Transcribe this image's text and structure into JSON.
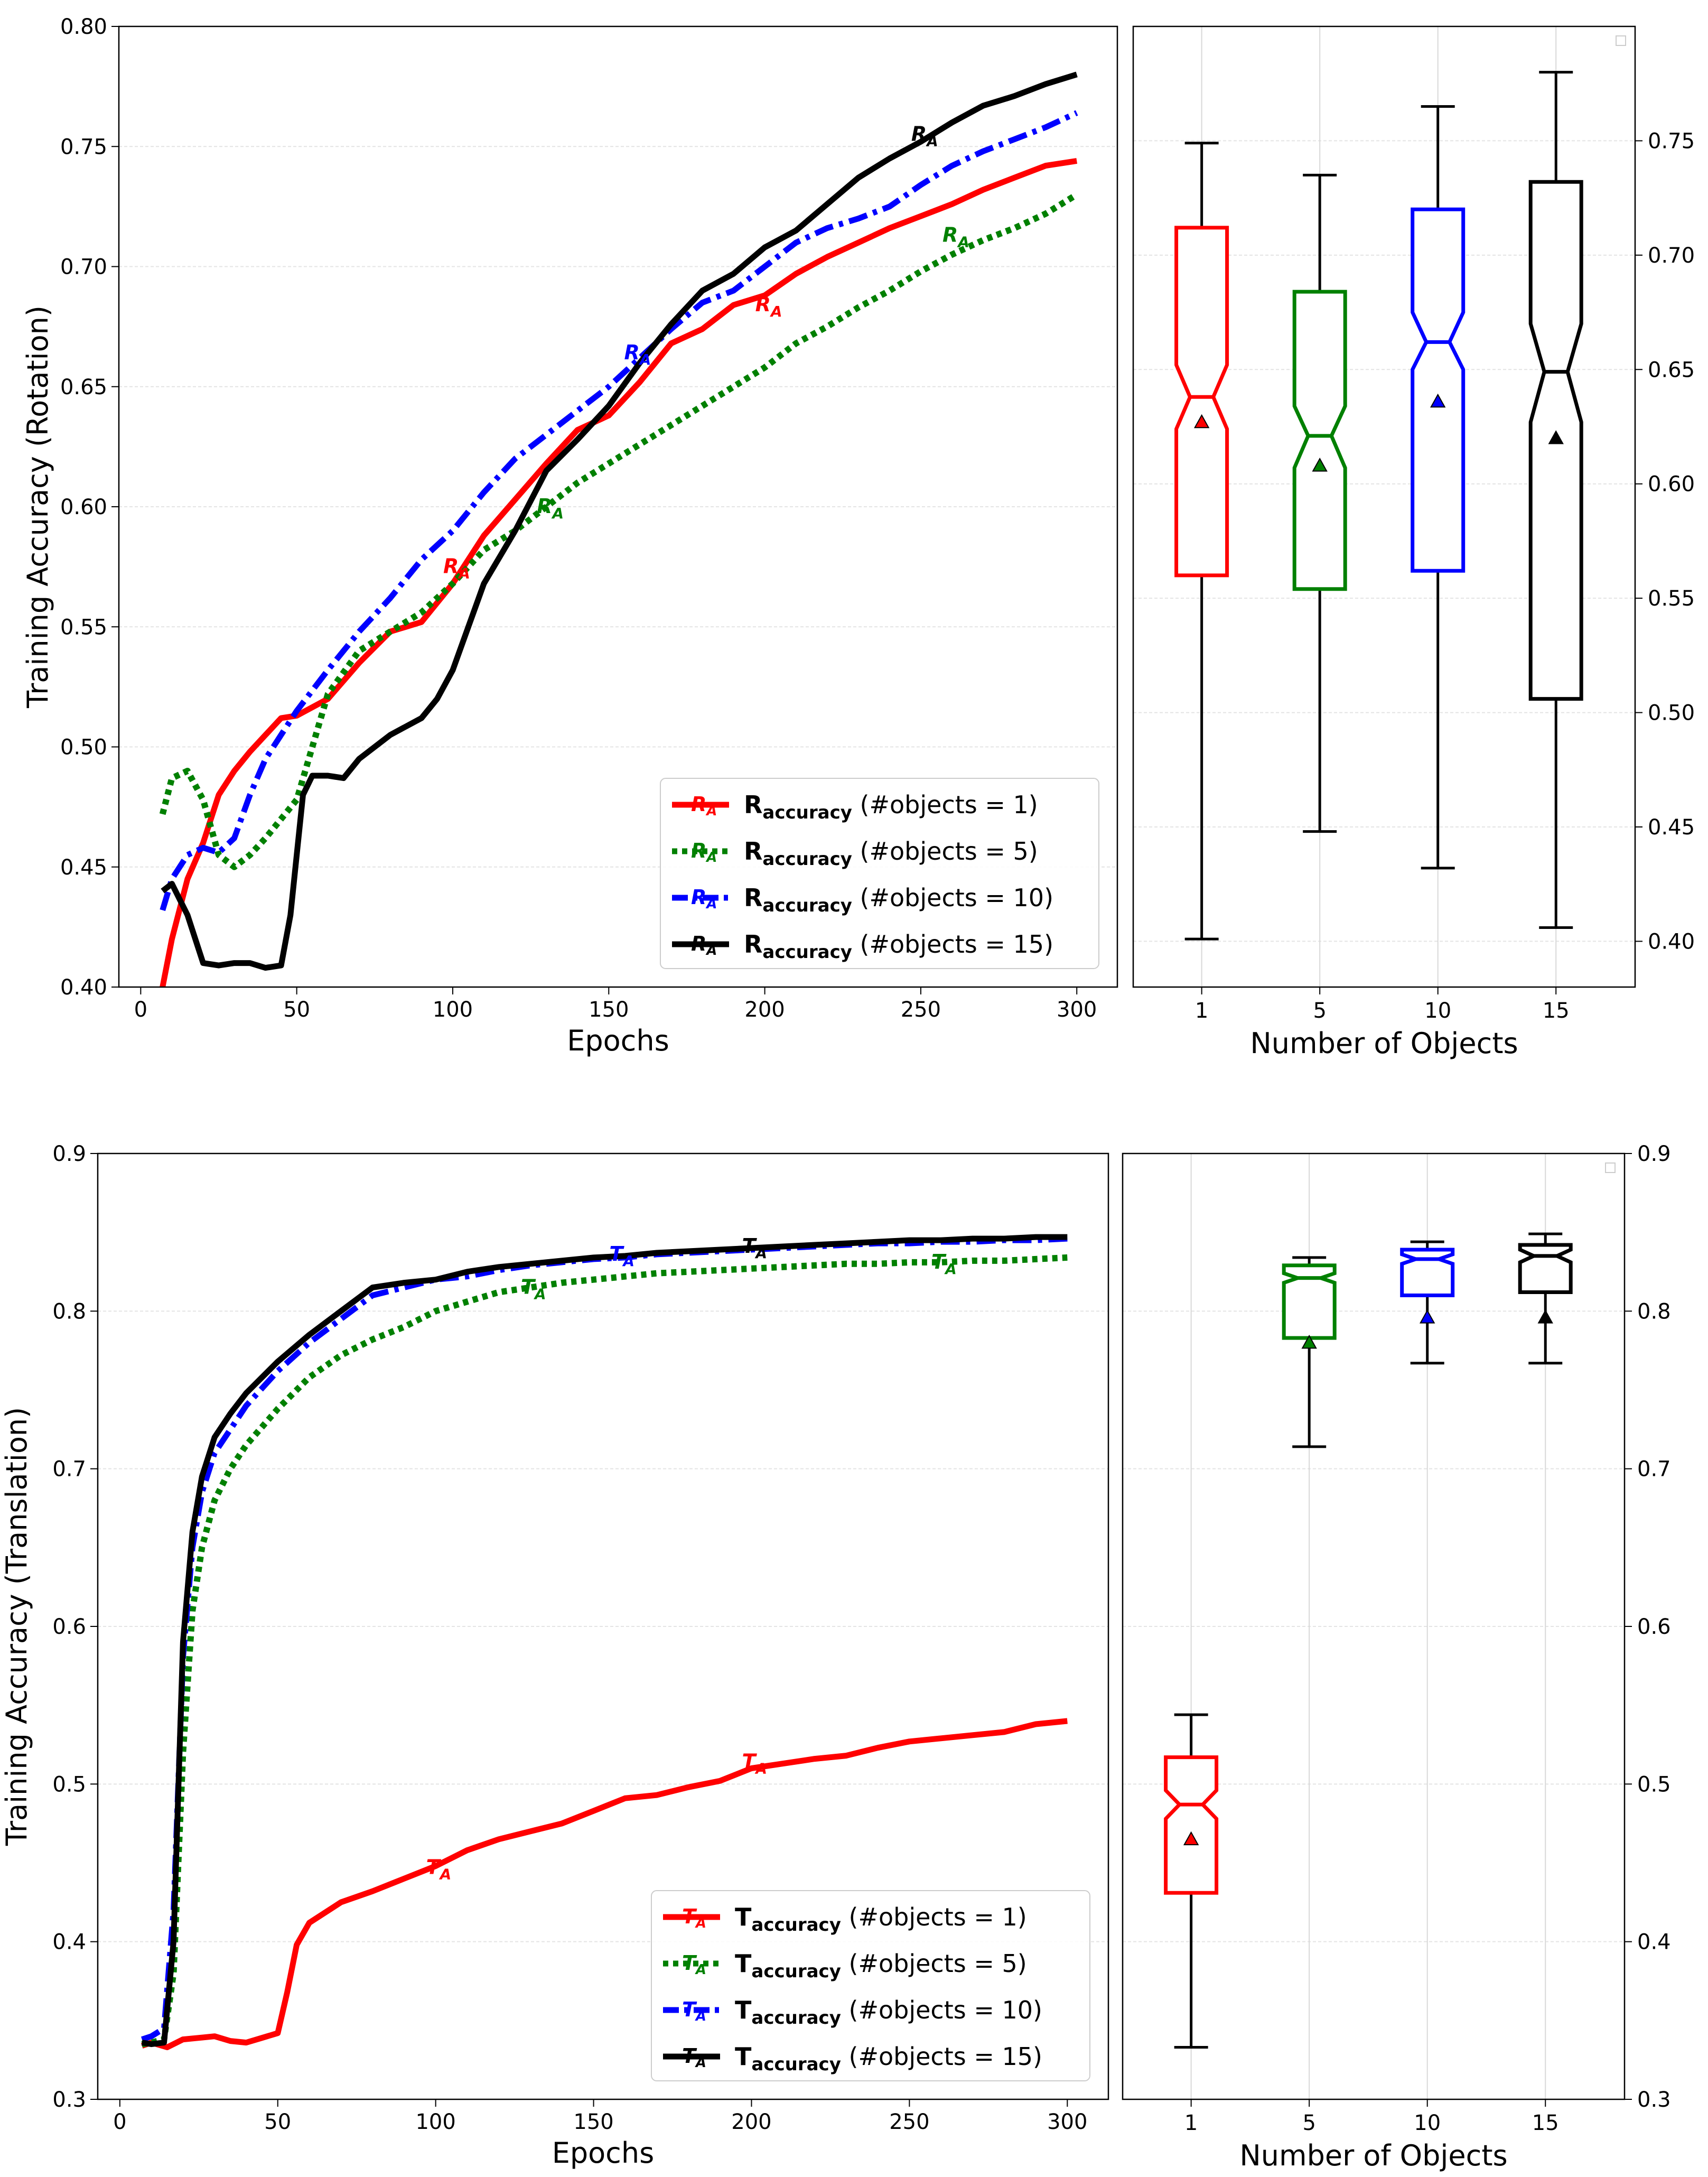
{
  "chart_data": [
    {
      "id": "rot_line",
      "type": "line",
      "ylabel": "Training Accuracy (Rotation)",
      "xlabel": "Epochs",
      "xlim": [
        -7,
        313
      ],
      "ylim": [
        0.4,
        0.8
      ],
      "xticks": [
        0,
        50,
        100,
        150,
        200,
        250,
        300
      ],
      "yticks": [
        "0.40",
        "0.45",
        "0.50",
        "0.55",
        "0.60",
        "0.65",
        "0.70",
        "0.75",
        "0.80"
      ],
      "grid": "horizontal",
      "legend_position": "bottom-right",
      "series": [
        {
          "name": "R_accuracy (#objects = 1)",
          "legend_main": "R",
          "legend_sub": "accuracy",
          "legend_rest": " (#objects = 1)",
          "marker": "R_A",
          "color": "#ff0000",
          "style": "solid",
          "x": [
            7,
            10,
            15,
            20,
            25,
            30,
            35,
            40,
            45,
            50,
            60,
            70,
            80,
            90,
            100,
            110,
            120,
            130,
            140,
            150,
            160,
            170,
            180,
            190,
            200,
            210,
            220,
            230,
            240,
            250,
            260,
            270,
            280,
            290,
            300
          ],
          "y": [
            0.4,
            0.42,
            0.445,
            0.46,
            0.48,
            0.49,
            0.498,
            0.505,
            0.512,
            0.513,
            0.52,
            0.535,
            0.548,
            0.552,
            0.568,
            0.588,
            0.603,
            0.618,
            0.632,
            0.638,
            0.652,
            0.668,
            0.674,
            0.684,
            0.688,
            0.697,
            0.704,
            0.71,
            0.716,
            0.721,
            0.726,
            0.732,
            0.737,
            0.742,
            0.744
          ]
        },
        {
          "name": "R_accuracy (#objects = 5)",
          "legend_main": "R",
          "legend_sub": "accuracy",
          "legend_rest": " (#objects = 5)",
          "marker": "R_A",
          "color": "#008000",
          "style": "dotted",
          "x": [
            7,
            10,
            15,
            20,
            25,
            30,
            35,
            40,
            45,
            50,
            55,
            60,
            70,
            80,
            90,
            100,
            110,
            120,
            130,
            140,
            150,
            160,
            170,
            180,
            190,
            200,
            210,
            220,
            230,
            240,
            250,
            260,
            270,
            280,
            290,
            300
          ],
          "y": [
            0.472,
            0.487,
            0.49,
            0.478,
            0.455,
            0.45,
            0.455,
            0.462,
            0.47,
            0.478,
            0.5,
            0.522,
            0.54,
            0.548,
            0.556,
            0.568,
            0.582,
            0.59,
            0.6,
            0.61,
            0.618,
            0.626,
            0.634,
            0.642,
            0.65,
            0.658,
            0.668,
            0.675,
            0.683,
            0.69,
            0.698,
            0.705,
            0.711,
            0.716,
            0.722,
            0.73
          ]
        },
        {
          "name": "R_accuracy (#objects = 10)",
          "legend_main": "R",
          "legend_sub": "accuracy",
          "legend_rest": " (#objects = 10)",
          "marker": "R_A",
          "color": "#0000ff",
          "style": "dashdot",
          "x": [
            7,
            10,
            15,
            20,
            25,
            30,
            35,
            40,
            45,
            50,
            60,
            70,
            80,
            90,
            100,
            110,
            120,
            130,
            140,
            150,
            160,
            170,
            180,
            190,
            200,
            210,
            220,
            230,
            240,
            250,
            260,
            270,
            280,
            290,
            300
          ],
          "y": [
            0.432,
            0.445,
            0.455,
            0.458,
            0.456,
            0.462,
            0.48,
            0.495,
            0.505,
            0.515,
            0.532,
            0.548,
            0.562,
            0.578,
            0.59,
            0.606,
            0.62,
            0.63,
            0.64,
            0.65,
            0.662,
            0.674,
            0.685,
            0.69,
            0.7,
            0.71,
            0.716,
            0.72,
            0.725,
            0.734,
            0.742,
            0.748,
            0.753,
            0.758,
            0.764
          ]
        },
        {
          "name": "R_accuracy (#objects = 15)",
          "legend_main": "R",
          "legend_sub": "accuracy",
          "legend_rest": " (#objects = 15)",
          "marker": "R_A",
          "color": "#000000",
          "style": "solid",
          "x": [
            7,
            10,
            15,
            20,
            25,
            30,
            35,
            40,
            45,
            48,
            52,
            55,
            60,
            65,
            70,
            80,
            90,
            95,
            100,
            105,
            110,
            120,
            130,
            140,
            150,
            160,
            170,
            180,
            190,
            200,
            210,
            220,
            230,
            240,
            250,
            260,
            270,
            280,
            290,
            300
          ],
          "y": [
            0.44,
            0.443,
            0.43,
            0.41,
            0.409,
            0.41,
            0.41,
            0.408,
            0.409,
            0.43,
            0.48,
            0.488,
            0.488,
            0.487,
            0.495,
            0.505,
            0.512,
            0.52,
            0.532,
            0.55,
            0.568,
            0.59,
            0.615,
            0.628,
            0.642,
            0.66,
            0.676,
            0.69,
            0.697,
            0.708,
            0.715,
            0.726,
            0.737,
            0.745,
            0.752,
            0.76,
            0.767,
            0.771,
            0.776,
            0.78
          ]
        }
      ],
      "marker_labels": [
        {
          "series": 0,
          "x": 100,
          "y": 0.575,
          "text": "R_A"
        },
        {
          "series": 0,
          "x": 200,
          "y": 0.684,
          "text": "R_A"
        },
        {
          "series": 1,
          "x": 130,
          "y": 0.6,
          "text": "R_A"
        },
        {
          "series": 1,
          "x": 260,
          "y": 0.713,
          "text": "R_A"
        },
        {
          "series": 2,
          "x": 158,
          "y": 0.664,
          "text": "R_A"
        },
        {
          "series": 3,
          "x": 250,
          "y": 0.755,
          "text": "R_A"
        }
      ]
    },
    {
      "id": "rot_box",
      "type": "box",
      "xlabel": "Number of Objects",
      "categories": [
        "1",
        "5",
        "10",
        "15"
      ],
      "ylim": [
        0.38,
        0.8
      ],
      "yticks": [
        "0.40",
        "0.45",
        "0.50",
        "0.55",
        "0.60",
        "0.65",
        "0.70",
        "0.75"
      ],
      "y_axis_side": "right",
      "notched": true,
      "boxes": [
        {
          "color": "#ff0000",
          "whisker_low": 0.401,
          "q1": 0.56,
          "median": 0.638,
          "q3": 0.712,
          "whisker_high": 0.749,
          "mean": 0.627,
          "notch_low": 0.624,
          "notch_high": 0.652
        },
        {
          "color": "#008000",
          "whisker_low": 0.448,
          "q1": 0.554,
          "median": 0.621,
          "q3": 0.684,
          "whisker_high": 0.735,
          "mean": 0.608,
          "notch_low": 0.607,
          "notch_high": 0.634
        },
        {
          "color": "#0000ff",
          "whisker_low": 0.432,
          "q1": 0.562,
          "median": 0.662,
          "q3": 0.72,
          "whisker_high": 0.765,
          "mean": 0.636,
          "notch_low": 0.65,
          "notch_high": 0.675
        },
        {
          "color": "#000000",
          "whisker_low": 0.406,
          "q1": 0.506,
          "median": 0.649,
          "q3": 0.732,
          "whisker_high": 0.78,
          "mean": 0.62,
          "notch_low": 0.627,
          "notch_high": 0.67
        }
      ]
    },
    {
      "id": "trans_line",
      "type": "line",
      "ylabel": "Training Accuracy (Translation)",
      "xlabel": "Epochs",
      "xlim": [
        -7,
        313
      ],
      "ylim": [
        0.3,
        0.9
      ],
      "xticks": [
        0,
        50,
        100,
        150,
        200,
        250,
        300
      ],
      "yticks": [
        "0.3",
        "0.4",
        "0.5",
        "0.6",
        "0.7",
        "0.8",
        "0.9"
      ],
      "grid": "horizontal",
      "legend_position": "bottom-right",
      "series": [
        {
          "name": "T_accuracy (#objects = 1)",
          "legend_main": "T",
          "legend_sub": "accuracy",
          "legend_rest": " (#objects = 1)",
          "marker": "T_A",
          "color": "#ff0000",
          "style": "solid",
          "x": [
            7,
            10,
            15,
            20,
            25,
            30,
            35,
            40,
            45,
            50,
            53,
            56,
            60,
            70,
            80,
            90,
            100,
            110,
            120,
            130,
            140,
            150,
            160,
            170,
            180,
            190,
            200,
            210,
            220,
            230,
            240,
            250,
            260,
            270,
            280,
            290,
            300
          ],
          "y": [
            0.334,
            0.336,
            0.333,
            0.338,
            0.339,
            0.34,
            0.337,
            0.336,
            0.339,
            0.342,
            0.368,
            0.398,
            0.412,
            0.425,
            0.432,
            0.44,
            0.448,
            0.458,
            0.465,
            0.47,
            0.475,
            0.483,
            0.491,
            0.493,
            0.498,
            0.502,
            0.51,
            0.513,
            0.516,
            0.518,
            0.523,
            0.527,
            0.529,
            0.531,
            0.533,
            0.538,
            0.54
          ]
        },
        {
          "name": "T_accuracy (#objects = 5)",
          "legend_main": "T",
          "legend_sub": "accuracy",
          "legend_rest": " (#objects = 5)",
          "marker": "T_A",
          "color": "#008000",
          "style": "dotted",
          "x": [
            7,
            10,
            14,
            17,
            20,
            23,
            26,
            30,
            35,
            40,
            50,
            60,
            70,
            80,
            90,
            100,
            110,
            120,
            130,
            140,
            150,
            160,
            170,
            180,
            190,
            200,
            210,
            220,
            230,
            240,
            250,
            260,
            270,
            280,
            290,
            300
          ],
          "y": [
            0.335,
            0.336,
            0.338,
            0.38,
            0.52,
            0.61,
            0.65,
            0.68,
            0.7,
            0.715,
            0.738,
            0.758,
            0.772,
            0.782,
            0.79,
            0.8,
            0.806,
            0.812,
            0.815,
            0.818,
            0.82,
            0.822,
            0.824,
            0.825,
            0.826,
            0.827,
            0.828,
            0.829,
            0.83,
            0.83,
            0.831,
            0.831,
            0.832,
            0.832,
            0.833,
            0.834
          ]
        },
        {
          "name": "T_accuracy (#objects = 10)",
          "legend_main": "T",
          "legend_sub": "accuracy",
          "legend_rest": " (#objects = 10)",
          "marker": "T_A",
          "color": "#0000ff",
          "style": "dashdot",
          "x": [
            7,
            10,
            14,
            17,
            20,
            23,
            26,
            30,
            35,
            40,
            50,
            60,
            70,
            80,
            90,
            100,
            110,
            120,
            130,
            140,
            150,
            160,
            170,
            180,
            190,
            200,
            210,
            220,
            230,
            240,
            250,
            260,
            270,
            280,
            290,
            300
          ],
          "y": [
            0.338,
            0.34,
            0.345,
            0.42,
            0.58,
            0.65,
            0.685,
            0.71,
            0.725,
            0.74,
            0.762,
            0.78,
            0.795,
            0.81,
            0.815,
            0.82,
            0.822,
            0.826,
            0.829,
            0.831,
            0.833,
            0.834,
            0.836,
            0.837,
            0.838,
            0.839,
            0.84,
            0.841,
            0.842,
            0.843,
            0.843,
            0.844,
            0.844,
            0.845,
            0.845,
            0.846
          ]
        },
        {
          "name": "T_accuracy (#objects = 15)",
          "legend_main": "T",
          "legend_sub": "accuracy",
          "legend_rest": " (#objects = 15)",
          "marker": "T_A",
          "color": "#000000",
          "style": "solid",
          "x": [
            7,
            10,
            14,
            17,
            20,
            23,
            26,
            30,
            35,
            40,
            50,
            60,
            70,
            80,
            90,
            100,
            110,
            120,
            130,
            140,
            150,
            160,
            170,
            180,
            190,
            200,
            210,
            220,
            230,
            240,
            250,
            260,
            270,
            280,
            290,
            300
          ],
          "y": [
            0.336,
            0.335,
            0.336,
            0.4,
            0.59,
            0.66,
            0.695,
            0.72,
            0.735,
            0.748,
            0.768,
            0.785,
            0.8,
            0.815,
            0.818,
            0.82,
            0.825,
            0.828,
            0.83,
            0.832,
            0.834,
            0.835,
            0.837,
            0.838,
            0.839,
            0.84,
            0.841,
            0.842,
            0.843,
            0.844,
            0.845,
            0.845,
            0.846,
            0.846,
            0.847,
            0.847
          ]
        }
      ],
      "marker_labels": [
        {
          "series": 0,
          "x": 100,
          "y": 0.447,
          "text": "T_A"
        },
        {
          "series": 0,
          "x": 200,
          "y": 0.514,
          "text": "T_A"
        },
        {
          "series": 1,
          "x": 130,
          "y": 0.815,
          "text": "T_A"
        },
        {
          "series": 1,
          "x": 260,
          "y": 0.831,
          "text": "T_A"
        },
        {
          "series": 2,
          "x": 158,
          "y": 0.836,
          "text": "T_A"
        },
        {
          "series": 3,
          "x": 200,
          "y": 0.841,
          "text": "T_A"
        }
      ]
    },
    {
      "id": "trans_box",
      "type": "box",
      "xlabel": "Number of Objects",
      "categories": [
        "1",
        "5",
        "10",
        "15"
      ],
      "ylim": [
        0.3,
        0.9
      ],
      "yticks": [
        "0.3",
        "0.4",
        "0.5",
        "0.6",
        "0.7",
        "0.8",
        "0.9"
      ],
      "y_axis_side": "right",
      "notched": true,
      "boxes": [
        {
          "color": "#ff0000",
          "whisker_low": 0.333,
          "q1": 0.431,
          "median": 0.487,
          "q3": 0.517,
          "whisker_high": 0.544,
          "mean": 0.465,
          "notch_low": 0.478,
          "notch_high": 0.496
        },
        {
          "color": "#008000",
          "whisker_low": 0.714,
          "q1": 0.783,
          "median": 0.821,
          "q3": 0.829,
          "whisker_high": 0.834,
          "mean": 0.78,
          "notch_low": 0.818,
          "notch_high": 0.824
        },
        {
          "color": "#0000ff",
          "whisker_low": 0.767,
          "q1": 0.81,
          "median": 0.833,
          "q3": 0.839,
          "whisker_high": 0.844,
          "mean": 0.796,
          "notch_low": 0.83,
          "notch_high": 0.836
        },
        {
          "color": "#000000",
          "whisker_low": 0.767,
          "q1": 0.812,
          "median": 0.835,
          "q3": 0.842,
          "whisker_high": 0.849,
          "mean": 0.796,
          "notch_low": 0.831,
          "notch_high": 0.839
        }
      ]
    }
  ]
}
